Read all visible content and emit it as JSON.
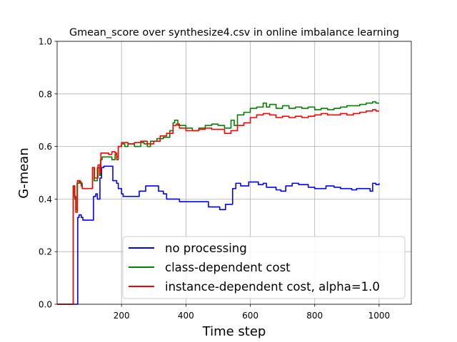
{
  "chart_data": {
    "type": "line",
    "title": "Gmean_score over synthesize4.csv in online imbalance learning",
    "xlabel": "Time step",
    "ylabel": "G-mean",
    "xlim": [
      0,
      1100
    ],
    "ylim": [
      0.0,
      1.0
    ],
    "xticks": [
      200,
      400,
      600,
      800,
      1000
    ],
    "yticks": [
      0.0,
      0.2,
      0.4,
      0.6,
      0.8,
      1.0
    ],
    "xtick_labels": [
      "200",
      "400",
      "600",
      "800",
      "1000"
    ],
    "ytick_labels": [
      "0.0",
      "0.2",
      "0.4",
      "0.6",
      "0.8",
      "1.0"
    ],
    "grid": true,
    "legend_position": "lower-right",
    "series": [
      {
        "name": "no processing",
        "color": "#0000ff",
        "points": [
          [
            0,
            0
          ],
          [
            64,
            0
          ],
          [
            64,
            0.33
          ],
          [
            68,
            0.34
          ],
          [
            75,
            0.33
          ],
          [
            80,
            0.32
          ],
          [
            110,
            0.32
          ],
          [
            113,
            0.41
          ],
          [
            120,
            0.42
          ],
          [
            125,
            0.4
          ],
          [
            130,
            0.4
          ],
          [
            133,
            0.48
          ],
          [
            138,
            0.52
          ],
          [
            145,
            0.525
          ],
          [
            170,
            0.525
          ],
          [
            173,
            0.47
          ],
          [
            185,
            0.46
          ],
          [
            190,
            0.44
          ],
          [
            200,
            0.42
          ],
          [
            205,
            0.41
          ],
          [
            250,
            0.41
          ],
          [
            255,
            0.43
          ],
          [
            270,
            0.43
          ],
          [
            275,
            0.45
          ],
          [
            300,
            0.45
          ],
          [
            315,
            0.43
          ],
          [
            330,
            0.42
          ],
          [
            340,
            0.4
          ],
          [
            360,
            0.4
          ],
          [
            380,
            0.39
          ],
          [
            460,
            0.39
          ],
          [
            470,
            0.37
          ],
          [
            490,
            0.37
          ],
          [
            505,
            0.36
          ],
          [
            520,
            0.36
          ],
          [
            523,
            0.38
          ],
          [
            540,
            0.38
          ],
          [
            545,
            0.44
          ],
          [
            555,
            0.46
          ],
          [
            570,
            0.45
          ],
          [
            590,
            0.45
          ],
          [
            595,
            0.465
          ],
          [
            615,
            0.465
          ],
          [
            625,
            0.455
          ],
          [
            640,
            0.46
          ],
          [
            650,
            0.445
          ],
          [
            665,
            0.445
          ],
          [
            680,
            0.435
          ],
          [
            695,
            0.43
          ],
          [
            700,
            0.43
          ],
          [
            710,
            0.45
          ],
          [
            720,
            0.45
          ],
          [
            730,
            0.46
          ],
          [
            750,
            0.455
          ],
          [
            780,
            0.445
          ],
          [
            800,
            0.44
          ],
          [
            830,
            0.44
          ],
          [
            835,
            0.45
          ],
          [
            860,
            0.445
          ],
          [
            880,
            0.44
          ],
          [
            910,
            0.44
          ],
          [
            915,
            0.435
          ],
          [
            925,
            0.435
          ],
          [
            930,
            0.44
          ],
          [
            965,
            0.44
          ],
          [
            972,
            0.43
          ],
          [
            980,
            0.46
          ],
          [
            990,
            0.455
          ],
          [
            1000,
            0.46
          ]
        ]
      },
      {
        "name": "class-dependent cost",
        "color": "#008000",
        "points": [
          [
            0,
            0
          ],
          [
            50,
            0
          ],
          [
            50,
            0.45
          ],
          [
            55,
            0.4
          ],
          [
            58,
            0.36
          ],
          [
            60,
            0.36
          ],
          [
            62,
            0.46
          ],
          [
            68,
            0.47
          ],
          [
            72,
            0.46
          ],
          [
            78,
            0.44
          ],
          [
            100,
            0.44
          ],
          [
            110,
            0.52
          ],
          [
            115,
            0.47
          ],
          [
            120,
            0.47
          ],
          [
            125,
            0.52
          ],
          [
            132,
            0.49
          ],
          [
            135,
            0.55
          ],
          [
            140,
            0.56
          ],
          [
            160,
            0.56
          ],
          [
            170,
            0.55
          ],
          [
            180,
            0.57
          ],
          [
            185,
            0.56
          ],
          [
            190,
            0.6
          ],
          [
            200,
            0.61
          ],
          [
            210,
            0.6
          ],
          [
            220,
            0.61
          ],
          [
            240,
            0.6
          ],
          [
            260,
            0.615
          ],
          [
            270,
            0.61
          ],
          [
            280,
            0.6
          ],
          [
            290,
            0.62
          ],
          [
            300,
            0.62
          ],
          [
            310,
            0.63
          ],
          [
            330,
            0.635
          ],
          [
            350,
            0.66
          ],
          [
            360,
            0.69
          ],
          [
            365,
            0.7
          ],
          [
            375,
            0.68
          ],
          [
            400,
            0.67
          ],
          [
            420,
            0.66
          ],
          [
            440,
            0.67
          ],
          [
            460,
            0.68
          ],
          [
            480,
            0.685
          ],
          [
            500,
            0.68
          ],
          [
            520,
            0.67
          ],
          [
            540,
            0.7
          ],
          [
            550,
            0.68
          ],
          [
            560,
            0.72
          ],
          [
            580,
            0.73
          ],
          [
            600,
            0.745
          ],
          [
            620,
            0.75
          ],
          [
            640,
            0.765
          ],
          [
            650,
            0.75
          ],
          [
            660,
            0.76
          ],
          [
            680,
            0.745
          ],
          [
            700,
            0.755
          ],
          [
            720,
            0.745
          ],
          [
            740,
            0.75
          ],
          [
            760,
            0.745
          ],
          [
            780,
            0.75
          ],
          [
            800,
            0.74
          ],
          [
            820,
            0.745
          ],
          [
            840,
            0.74
          ],
          [
            860,
            0.745
          ],
          [
            880,
            0.75
          ],
          [
            900,
            0.755
          ],
          [
            920,
            0.755
          ],
          [
            940,
            0.76
          ],
          [
            960,
            0.765
          ],
          [
            980,
            0.77
          ],
          [
            990,
            0.765
          ],
          [
            1000,
            0.765
          ]
        ]
      },
      {
        "name": "instance-dependent cost, alpha=1.0",
        "color": "#ff0000",
        "points": [
          [
            0,
            0
          ],
          [
            50,
            0
          ],
          [
            50,
            0.45
          ],
          [
            54,
            0.41
          ],
          [
            58,
            0.35
          ],
          [
            61,
            0.35
          ],
          [
            63,
            0.47
          ],
          [
            70,
            0.465
          ],
          [
            75,
            0.45
          ],
          [
            78,
            0.44
          ],
          [
            100,
            0.44
          ],
          [
            110,
            0.52
          ],
          [
            116,
            0.48
          ],
          [
            121,
            0.48
          ],
          [
            127,
            0.53
          ],
          [
            133,
            0.5
          ],
          [
            136,
            0.575
          ],
          [
            150,
            0.575
          ],
          [
            160,
            0.57
          ],
          [
            170,
            0.58
          ],
          [
            180,
            0.575
          ],
          [
            185,
            0.55
          ],
          [
            190,
            0.6
          ],
          [
            200,
            0.615
          ],
          [
            220,
            0.61
          ],
          [
            240,
            0.615
          ],
          [
            260,
            0.62
          ],
          [
            280,
            0.61
          ],
          [
            300,
            0.62
          ],
          [
            320,
            0.64
          ],
          [
            340,
            0.65
          ],
          [
            360,
            0.68
          ],
          [
            370,
            0.685
          ],
          [
            380,
            0.67
          ],
          [
            400,
            0.66
          ],
          [
            420,
            0.66
          ],
          [
            440,
            0.665
          ],
          [
            460,
            0.67
          ],
          [
            480,
            0.665
          ],
          [
            500,
            0.665
          ],
          [
            520,
            0.65
          ],
          [
            540,
            0.66
          ],
          [
            560,
            0.68
          ],
          [
            580,
            0.69
          ],
          [
            600,
            0.71
          ],
          [
            620,
            0.72
          ],
          [
            640,
            0.725
          ],
          [
            660,
            0.72
          ],
          [
            680,
            0.71
          ],
          [
            700,
            0.715
          ],
          [
            720,
            0.71
          ],
          [
            740,
            0.715
          ],
          [
            760,
            0.71
          ],
          [
            780,
            0.715
          ],
          [
            800,
            0.72
          ],
          [
            820,
            0.725
          ],
          [
            840,
            0.72
          ],
          [
            860,
            0.72
          ],
          [
            880,
            0.725
          ],
          [
            900,
            0.72
          ],
          [
            920,
            0.725
          ],
          [
            940,
            0.73
          ],
          [
            960,
            0.735
          ],
          [
            980,
            0.74
          ],
          [
            990,
            0.735
          ],
          [
            1000,
            0.735
          ]
        ]
      }
    ]
  }
}
